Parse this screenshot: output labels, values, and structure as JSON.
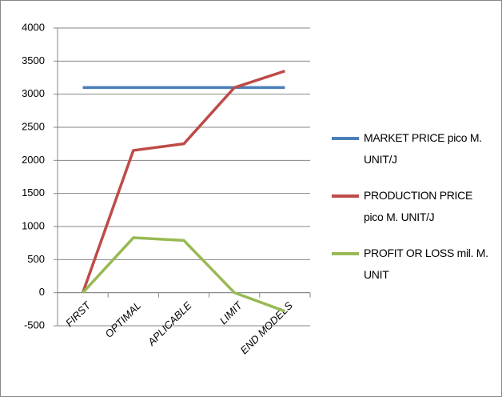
{
  "chart_data": {
    "type": "line",
    "categories": [
      "FIRST",
      "OPTIMAL",
      "APLICABLE",
      "LIMIT",
      "END MODELS"
    ],
    "series": [
      {
        "name": "MARKET PRICE pico M. UNIT/J",
        "color": "#4a7ebb",
        "values": [
          3100,
          3100,
          3100,
          3100,
          3100
        ]
      },
      {
        "name": "PRODUCTION PRICE pico M. UNIT/J",
        "color": "#be4b48",
        "values": [
          0,
          2150,
          2250,
          3100,
          3350
        ]
      },
      {
        "name": "PROFIT OR LOSS mil. M. UNIT",
        "color": "#98b954",
        "values": [
          0,
          830,
          790,
          0,
          -280
        ]
      }
    ],
    "ylim": [
      -500,
      4000
    ],
    "yticks": [
      -500,
      0,
      500,
      1000,
      1500,
      2000,
      2500,
      3000,
      3500,
      4000
    ],
    "grid": true,
    "legend": "right"
  }
}
